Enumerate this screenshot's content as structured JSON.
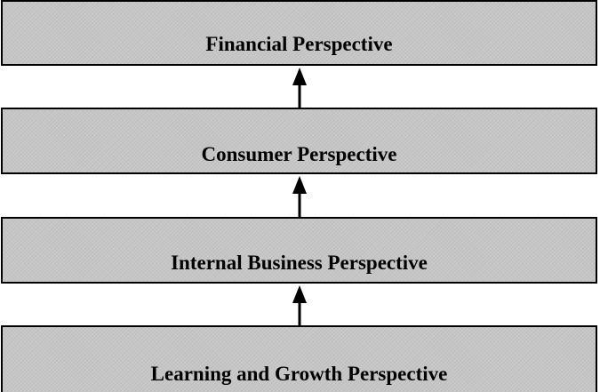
{
  "diagram": {
    "boxes": [
      {
        "label": "Financial Perspective"
      },
      {
        "label": "Consumer Perspective"
      },
      {
        "label": "Internal Business Perspective"
      },
      {
        "label": "Learning and Growth Perspective"
      }
    ],
    "arrows": [
      {
        "from": "Consumer Perspective",
        "to": "Financial Perspective"
      },
      {
        "from": "Internal Business Perspective",
        "to": "Consumer Perspective"
      },
      {
        "from": "Learning and Growth Perspective",
        "to": "Internal Business Perspective"
      }
    ],
    "colors": {
      "box_fill": "#c6c6c6",
      "border": "#000000",
      "text": "#000000"
    }
  }
}
